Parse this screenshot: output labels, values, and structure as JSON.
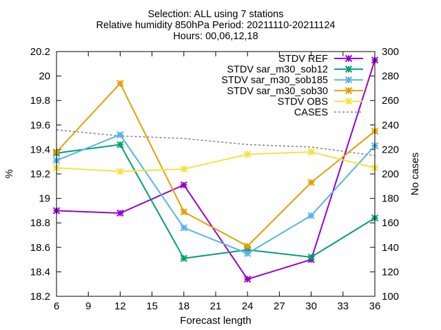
{
  "chart_data": {
    "type": "line",
    "title_lines": [
      "Selection: ALL using      7 stations",
      "Relative humidity 850hPa   Period: 20211110-20211124",
      "Hours: 00,06,12,18"
    ],
    "xlabel": "Forecast length",
    "ylabel": "%",
    "y2label": "No cases",
    "x_ticks": [
      "6",
      "9",
      "12",
      "15",
      "18",
      "21",
      "24",
      "27",
      "30",
      "33",
      "36"
    ],
    "y_ticks": [
      "18.2",
      "18.4",
      "18.6",
      "18.8",
      "19",
      "19.2",
      "19.4",
      "19.6",
      "19.8",
      "20",
      "20.2"
    ],
    "y2_ticks": [
      "100",
      "120",
      "140",
      "160",
      "180",
      "200",
      "220",
      "240",
      "260",
      "280",
      "300"
    ],
    "xlim": [
      6,
      36
    ],
    "ylim": [
      18.2,
      20.2
    ],
    "y2lim": [
      100,
      300
    ],
    "legend_position": "top-right",
    "x": [
      6,
      12,
      18,
      24,
      30,
      36
    ],
    "series": [
      {
        "name": "STDV REF",
        "color": "#9400d3",
        "marker": "x-star",
        "values": [
          18.9,
          18.88,
          19.11,
          18.34,
          18.5,
          20.13
        ]
      },
      {
        "name": "STDV sar_m30_sob12",
        "color": "#009e73",
        "marker": "x-star",
        "values": [
          19.37,
          19.44,
          18.51,
          18.58,
          18.52,
          18.84
        ]
      },
      {
        "name": "STDV sar_m30_sob185",
        "color": "#56b4e9",
        "marker": "x-star",
        "values": [
          19.31,
          19.52,
          18.76,
          18.55,
          18.86,
          19.43
        ]
      },
      {
        "name": "STDV sar_m30_sob30",
        "color": "#e69f00",
        "marker": "x-star",
        "values": [
          19.38,
          19.94,
          18.89,
          18.61,
          19.13,
          19.55
        ]
      },
      {
        "name": "STDV OBS",
        "color": "#f0e442",
        "marker": "x-star",
        "values": [
          19.25,
          19.22,
          19.24,
          19.36,
          19.38,
          19.25
        ]
      },
      {
        "name": "CASES",
        "color": "#808080",
        "marker": "none",
        "dashed": true,
        "axis": "y2",
        "values": [
          236,
          231,
          229,
          224,
          222,
          215
        ]
      }
    ]
  }
}
